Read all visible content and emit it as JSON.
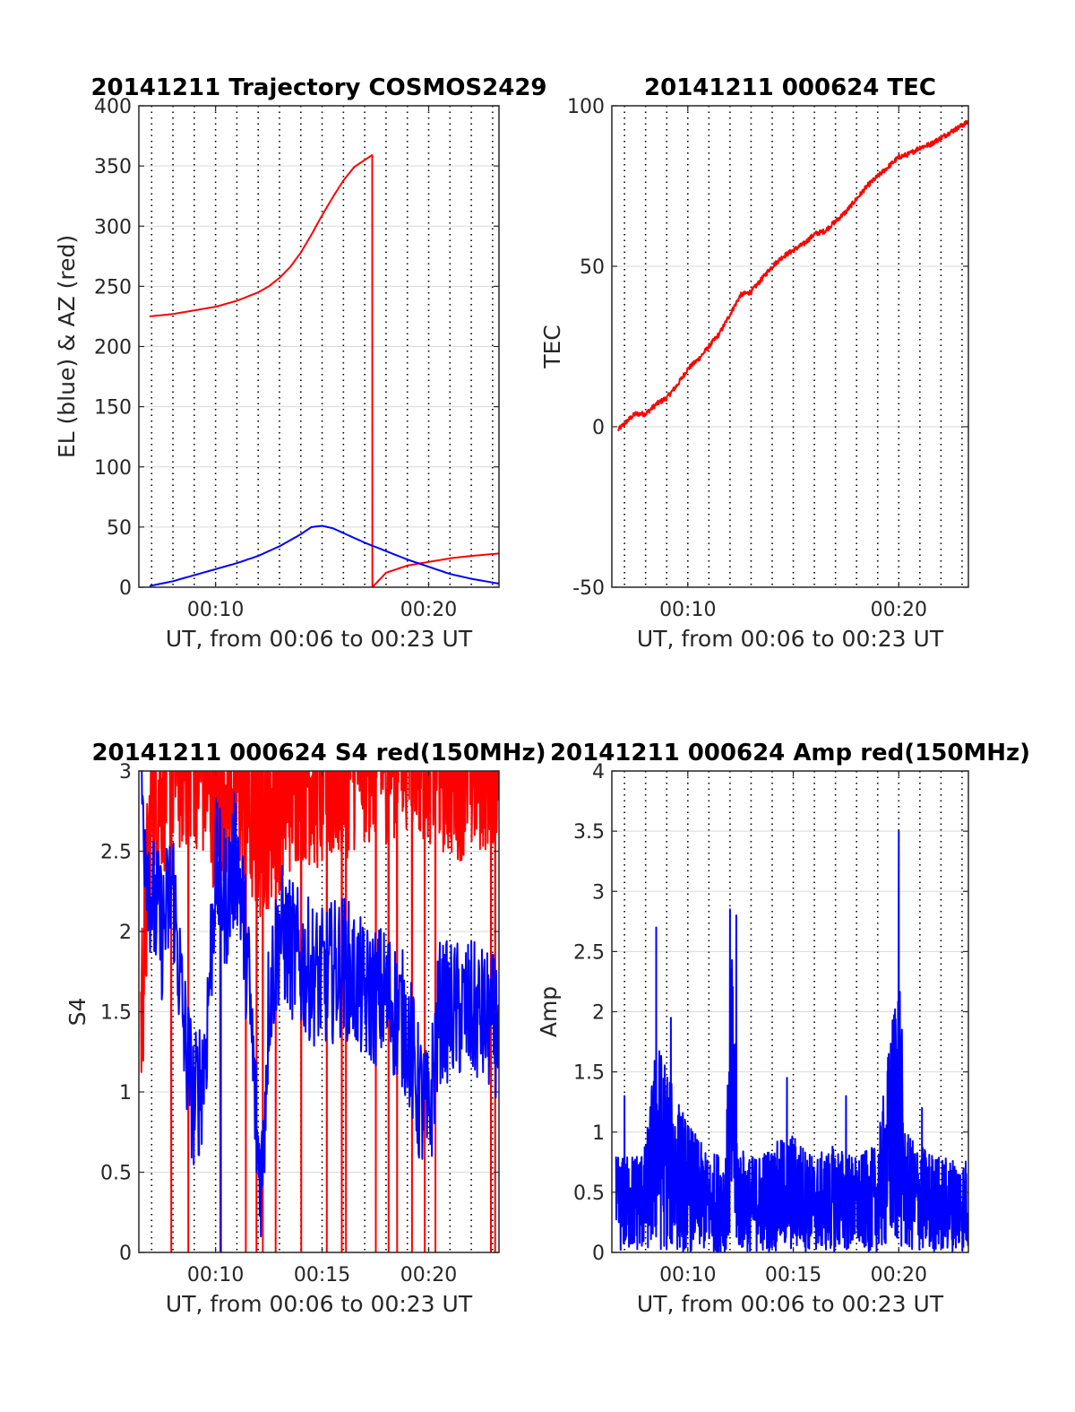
{
  "figure": {
    "background": "#ffffff"
  },
  "colors": {
    "el": "#0000ff",
    "az": "#ff0000",
    "red": "#ff0000",
    "blue": "#0000ff",
    "grid": "#d9d9d9",
    "vgrid": "#000000"
  },
  "chart_data": [
    {
      "id": "trajectory",
      "type": "line",
      "title": "20141211 Trajectory COSMOS2429",
      "xlabel": "UT, from 00:06 to 00:23 UT",
      "ylabel": "EL (blue) & AZ (red)",
      "xlim": [
        6.4,
        23.3
      ],
      "ylim": [
        0,
        400
      ],
      "xticks": [
        {
          "v": 10,
          "label": "00:10"
        },
        {
          "v": 20,
          "label": "00:20"
        }
      ],
      "yticks": [
        0,
        50,
        100,
        150,
        200,
        250,
        300,
        350,
        400
      ],
      "ytick_labels": [
        "0",
        "50",
        "100",
        "150",
        "200",
        "250",
        "300",
        "350",
        "400"
      ],
      "vertical_dotted_lines_minutes": [
        7,
        8,
        9,
        10,
        11,
        12,
        13,
        14,
        15,
        16,
        17,
        18,
        19,
        20,
        21,
        22,
        23
      ],
      "grid": true,
      "series": [
        {
          "color": "#ff0000",
          "x": [
            6.9,
            8.0,
            9.0,
            10.0,
            11.0,
            12.0,
            12.5,
            13.0,
            13.5,
            14.0,
            14.5,
            15.0,
            15.5,
            16.0,
            16.5,
            17.0,
            17.35,
            17.36,
            18.0,
            19.0,
            20.0,
            21.0,
            22.0,
            23.3
          ],
          "y": [
            225,
            227,
            230,
            233,
            238,
            245,
            250,
            257,
            266,
            278,
            293,
            309,
            324,
            338,
            349,
            355,
            359,
            0,
            12,
            18,
            21,
            24,
            26,
            28
          ]
        },
        {
          "color": "#0000ff",
          "x": [
            6.9,
            8.0,
            9.0,
            10.0,
            11.0,
            12.0,
            13.0,
            14.0,
            14.5,
            15.0,
            15.5,
            16.0,
            17.0,
            18.0,
            19.0,
            20.0,
            21.0,
            22.0,
            23.3
          ],
          "y": [
            1,
            5,
            10,
            15,
            20,
            26,
            34,
            44,
            50,
            51,
            49,
            45,
            37,
            30,
            23,
            17,
            11,
            7,
            3
          ]
        }
      ]
    },
    {
      "id": "tec",
      "type": "line",
      "title": "20141211 000624 TEC",
      "xlabel": "UT, from 00:06 to 00:23 UT",
      "ylabel": "TEC",
      "xlim": [
        6.4,
        23.3
      ],
      "ylim": [
        -50,
        100
      ],
      "xticks": [
        {
          "v": 10,
          "label": "00:10"
        },
        {
          "v": 20,
          "label": "00:20"
        }
      ],
      "yticks": [
        -50,
        0,
        50,
        100
      ],
      "ytick_labels": [
        "-50",
        "0",
        "50",
        "100"
      ],
      "vertical_dotted_lines_minutes": [
        7,
        8,
        9,
        10,
        11,
        12,
        13,
        14,
        15,
        16,
        17,
        18,
        19,
        20,
        21,
        22,
        23
      ],
      "grid": true,
      "series": [
        {
          "color": "#ff0000",
          "x": [
            6.7,
            7.0,
            7.5,
            8.0,
            8.5,
            9.0,
            9.5,
            10.0,
            10.5,
            11.0,
            11.5,
            12.0,
            12.5,
            13.0,
            13.5,
            14.0,
            14.5,
            15.0,
            15.5,
            16.0,
            16.5,
            17.0,
            17.5,
            18.0,
            18.5,
            19.0,
            19.5,
            20.0,
            20.5,
            21.0,
            21.5,
            22.0,
            22.5,
            23.3
          ],
          "y": [
            -1,
            1,
            4,
            4,
            7,
            9,
            13,
            18,
            21,
            25,
            29,
            35,
            41,
            42,
            46,
            50,
            53,
            55,
            57,
            60,
            61,
            64,
            67,
            71,
            75,
            78,
            81,
            84,
            85,
            87,
            88,
            90,
            92,
            95
          ]
        }
      ]
    },
    {
      "id": "s4",
      "type": "line",
      "title": "20141211 000624 S4 red(150MHz)",
      "xlabel": "UT, from 00:06 to 00:23 UT",
      "ylabel": "S4",
      "xlim": [
        6.4,
        23.3
      ],
      "ylim": [
        0,
        3
      ],
      "xticks": [
        {
          "v": 10,
          "label": "00:10"
        },
        {
          "v": 15,
          "label": "00:15"
        },
        {
          "v": 20,
          "label": "00:20"
        }
      ],
      "yticks": [
        0,
        0.5,
        1,
        1.5,
        2,
        2.5,
        3
      ],
      "ytick_labels": [
        "0",
        "0.5",
        "1",
        "1.5",
        "2",
        "2.5",
        "3"
      ],
      "vertical_dotted_lines_minutes": [
        7,
        8,
        9,
        10,
        11,
        12,
        13,
        14,
        15,
        16,
        17,
        18,
        19,
        20,
        21,
        22,
        23
      ],
      "grid": true,
      "series": [
        {
          "color": "#ff0000",
          "profile": "saturated-noise",
          "x": [
            6.5,
            7.0,
            8.0,
            9.0,
            10.0,
            11.0,
            12.0,
            13.0,
            14.0,
            15.0,
            16.0,
            17.0,
            18.0,
            19.0,
            20.0,
            21.0,
            22.0,
            23.3
          ],
          "y": [
            1.2,
            2.6,
            2.8,
            2.9,
            2.6,
            2.7,
            2.4,
            2.6,
            2.8,
            2.7,
            2.8,
            2.9,
            2.9,
            3.0,
            2.9,
            2.8,
            2.8,
            2.9
          ],
          "dropouts": [
            7.9,
            8.7,
            10.2,
            11.4,
            11.9,
            12.2,
            12.8,
            14.0,
            15.2,
            15.9,
            16.1,
            17.5,
            18.1,
            18.5,
            19.2,
            19.8,
            20.3,
            22.9,
            23.1
          ]
        },
        {
          "color": "#0000ff",
          "profile": "noise",
          "x": [
            6.5,
            7.0,
            7.5,
            8.0,
            8.5,
            9.0,
            9.5,
            10.0,
            10.5,
            11.0,
            11.5,
            12.0,
            12.2,
            12.5,
            13.0,
            14.0,
            15.0,
            16.0,
            17.0,
            18.0,
            19.0,
            19.5,
            20.0,
            20.5,
            21.0,
            22.0,
            23.3
          ],
          "y": [
            2.9,
            2.2,
            2.0,
            2.3,
            1.4,
            0.9,
            1.2,
            2.4,
            2.2,
            2.5,
            1.8,
            0.6,
            0.5,
            1.6,
            2.0,
            1.8,
            1.7,
            1.8,
            1.6,
            1.6,
            1.4,
            1.0,
            0.8,
            1.5,
            1.5,
            1.5,
            1.4
          ]
        }
      ]
    },
    {
      "id": "amp",
      "type": "line",
      "title": "20141211 000624 Amp red(150MHz)",
      "xlabel": "UT, from 00:06 to 00:23 UT",
      "ylabel": "Amp",
      "xlim": [
        6.4,
        23.3
      ],
      "ylim": [
        0,
        4
      ],
      "xticks": [
        {
          "v": 10,
          "label": "00:10"
        },
        {
          "v": 15,
          "label": "00:15"
        },
        {
          "v": 20,
          "label": "00:20"
        }
      ],
      "yticks": [
        0,
        0.5,
        1,
        1.5,
        2,
        2.5,
        3,
        3.5,
        4
      ],
      "ytick_labels": [
        "0",
        "0.5",
        "1",
        "1.5",
        "2",
        "2.5",
        "3",
        "3.5",
        "4"
      ],
      "vertical_dotted_lines_minutes": [
        7,
        8,
        9,
        10,
        11,
        12,
        13,
        14,
        15,
        16,
        17,
        18,
        19,
        20,
        21,
        22,
        23
      ],
      "grid": true,
      "series": [
        {
          "color": "#0000ff",
          "profile": "spiky-noise",
          "x": [
            6.6,
            7.0,
            8.0,
            8.5,
            9.0,
            9.5,
            10.0,
            11.0,
            11.8,
            12.1,
            12.4,
            13.0,
            14.0,
            15.0,
            16.0,
            17.0,
            18.0,
            19.0,
            19.7,
            20.0,
            20.3,
            21.0,
            22.0,
            23.3
          ],
          "y": [
            0.8,
            0.8,
            0.9,
            1.8,
            1.6,
            1.3,
            1.1,
            0.8,
            0.9,
            2.6,
            0.9,
            0.8,
            0.9,
            1.0,
            0.8,
            0.9,
            0.8,
            0.9,
            2.0,
            2.7,
            1.0,
            0.9,
            0.8,
            0.8
          ],
          "peaks": [
            {
              "x": 8.5,
              "y": 2.7
            },
            {
              "x": 9.2,
              "y": 1.95
            },
            {
              "x": 12.0,
              "y": 2.85
            },
            {
              "x": 12.3,
              "y": 2.8
            },
            {
              "x": 14.7,
              "y": 1.45
            },
            {
              "x": 17.5,
              "y": 1.3
            },
            {
              "x": 20.0,
              "y": 3.5
            },
            {
              "x": 7.0,
              "y": 1.3
            },
            {
              "x": 21.1,
              "y": 1.2
            }
          ]
        }
      ]
    }
  ]
}
